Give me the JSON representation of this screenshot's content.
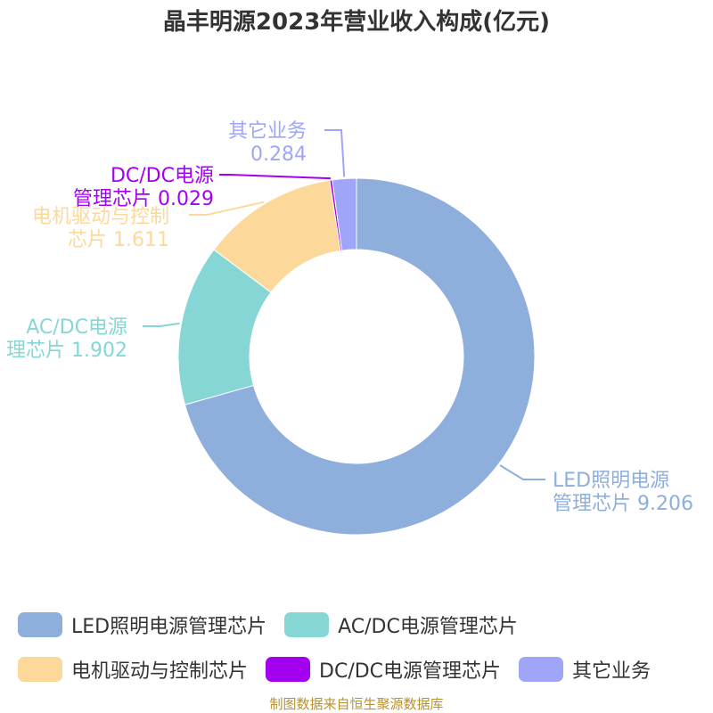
{
  "chart_data": {
    "type": "pie",
    "title": "晶丰明源2023年营业收入构成(亿元)",
    "donut": true,
    "legend_position": "bottom",
    "series": [
      {
        "name": "LED照明电源管理芯片",
        "value": 9.206,
        "label_lines": [
          "LED照明电源",
          "管理芯片 9.206"
        ],
        "color": "#8eaedb"
      },
      {
        "name": "AC/DC电源管理芯片",
        "value": 1.902,
        "label_lines": [
          "AC/DC电源",
          "理芯片 1.902"
        ],
        "color": "#86d6d6"
      },
      {
        "name": "电机驱动与控制芯片",
        "value": 1.611,
        "label_lines": [
          "电机驱动与控制",
          "芯片 1.611"
        ],
        "color": "#fcd99a"
      },
      {
        "name": "DC/DC电源管理芯片",
        "value": 0.029,
        "label_lines": [
          "DC/DC电源",
          "管理芯片 0.029"
        ],
        "color": "#a400f0"
      },
      {
        "name": "其它业务",
        "value": 0.284,
        "label_lines": [
          "其它业务",
          "0.284"
        ],
        "color": "#a0a6f7"
      }
    ]
  },
  "source": "制图数据来自恒生聚源数据库"
}
